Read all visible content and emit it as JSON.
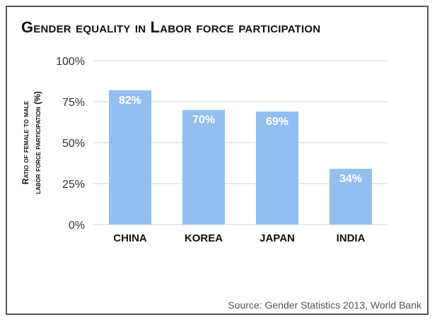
{
  "colors": {
    "bar": "#92BEF0",
    "grid": "#d6d6d6",
    "axis_text": "#333333",
    "category_text": "#111111",
    "value_label": "#ffffff"
  },
  "source": "Source: Gender Statistics 2013, World Bank",
  "chart_data": {
    "type": "bar",
    "title": "Gender equality in Labor force participation",
    "ylabel": [
      "Ratio of female to male",
      "labor force participation (%)"
    ],
    "xlabel": "",
    "categories": [
      "CHINA",
      "KOREA",
      "JAPAN",
      "INDIA"
    ],
    "values": [
      82,
      70,
      69,
      34
    ],
    "value_labels": [
      "82%",
      "70%",
      "69%",
      "34%"
    ],
    "ylim": [
      0,
      100
    ],
    "yticks": [
      0,
      25,
      50,
      75,
      100
    ],
    "ytick_labels": [
      "0%",
      "25%",
      "50%",
      "75%",
      "100%"
    ],
    "grid": true,
    "legend": "none"
  }
}
